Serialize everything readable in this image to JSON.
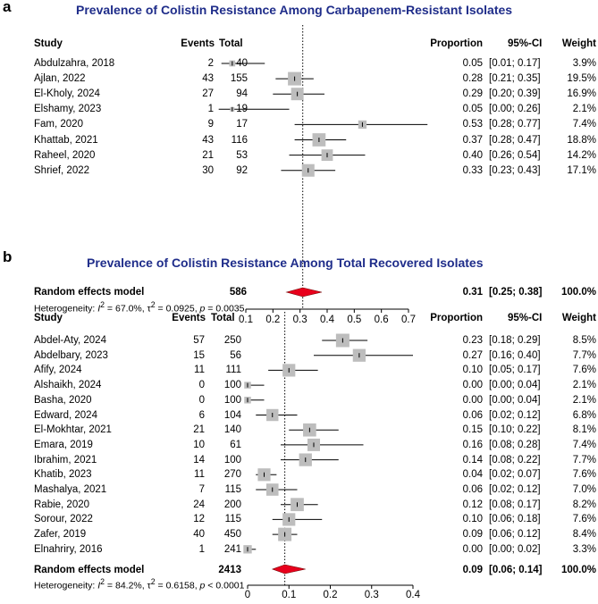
{
  "headers": {
    "study": "Study",
    "events": "Events",
    "total": "Total",
    "proportion": "Proportion",
    "ci": "95%-CI",
    "weight": "Weight"
  },
  "panels": [
    {
      "label": "a",
      "title": "Prevalence of Colistin Resistance Among Carbapenem-Resistant Isolates",
      "studies": [
        {
          "study": "Abdulzahra, 2018",
          "events": "2",
          "total": "40",
          "proportion": "0.05",
          "ci": "[0.01; 0.17]",
          "weight": "3.9%"
        },
        {
          "study": "Ajlan, 2022",
          "events": "43",
          "total": "155",
          "proportion": "0.28",
          "ci": "[0.21; 0.35]",
          "weight": "19.5%"
        },
        {
          "study": "El-Kholy, 2024",
          "events": "27",
          "total": "94",
          "proportion": "0.29",
          "ci": "[0.20; 0.39]",
          "weight": "16.9%"
        },
        {
          "study": "Elshamy, 2023",
          "events": "1",
          "total": "19",
          "proportion": "0.05",
          "ci": "[0.00; 0.26]",
          "weight": "2.1%"
        },
        {
          "study": "Fam, 2020",
          "events": "9",
          "total": "17",
          "proportion": "0.53",
          "ci": "[0.28; 0.77]",
          "weight": "7.4%"
        },
        {
          "study": "Khattab, 2021",
          "events": "43",
          "total": "116",
          "proportion": "0.37",
          "ci": "[0.28; 0.47]",
          "weight": "18.8%"
        },
        {
          "study": "Raheel, 2020",
          "events": "21",
          "total": "53",
          "proportion": "0.40",
          "ci": "[0.26; 0.54]",
          "weight": "14.2%"
        },
        {
          "study": "Shrief, 2022",
          "events": "30",
          "total": "92",
          "proportion": "0.33",
          "ci": "[0.23; 0.43]",
          "weight": "17.1%"
        }
      ],
      "summary": {
        "label": "Random effects model",
        "total": "586",
        "proportion": "0.31",
        "ci": "[0.25; 0.38]",
        "weight": "100.0%"
      },
      "heterogeneity": {
        "prefix": "Heterogeneity: ",
        "i2_value": " = 67.0%, ",
        "tau2_value": " = 0.0925, ",
        "p_value": " = 0.0035"
      }
    },
    {
      "label": "b",
      "title": "Prevalence of Colistin Resistance Among Total Recovered Isolates",
      "studies": [
        {
          "study": "Abdel-Aty, 2024",
          "events": "57",
          "total": "250",
          "proportion": "0.23",
          "ci": "[0.18; 0.29]",
          "weight": "8.5%"
        },
        {
          "study": "Abdelbary, 2023",
          "events": "15",
          "total": "56",
          "proportion": "0.27",
          "ci": "[0.16; 0.40]",
          "weight": "7.7%"
        },
        {
          "study": "Afify, 2024",
          "events": "11",
          "total": "111",
          "proportion": "0.10",
          "ci": "[0.05; 0.17]",
          "weight": "7.6%"
        },
        {
          "study": "Alshaikh, 2024",
          "events": "0",
          "total": "100",
          "proportion": "0.00",
          "ci": "[0.00; 0.04]",
          "weight": "2.1%"
        },
        {
          "study": "Basha, 2020",
          "events": "0",
          "total": "100",
          "proportion": "0.00",
          "ci": "[0.00; 0.04]",
          "weight": "2.1%"
        },
        {
          "study": "Edward, 2024",
          "events": "6",
          "total": "104",
          "proportion": "0.06",
          "ci": "[0.02; 0.12]",
          "weight": "6.8%"
        },
        {
          "study": "El-Mokhtar, 2021",
          "events": "21",
          "total": "140",
          "proportion": "0.15",
          "ci": "[0.10; 0.22]",
          "weight": "8.1%"
        },
        {
          "study": "Emara, 2019",
          "events": "10",
          "total": "61",
          "proportion": "0.16",
          "ci": "[0.08; 0.28]",
          "weight": "7.4%"
        },
        {
          "study": "Ibrahim, 2021",
          "events": "14",
          "total": "100",
          "proportion": "0.14",
          "ci": "[0.08; 0.22]",
          "weight": "7.7%"
        },
        {
          "study": "Khatib, 2023",
          "events": "11",
          "total": "270",
          "proportion": "0.04",
          "ci": "[0.02; 0.07]",
          "weight": "7.6%"
        },
        {
          "study": "Mashalya, 2021",
          "events": "7",
          "total": "115",
          "proportion": "0.06",
          "ci": "[0.02; 0.12]",
          "weight": "7.0%"
        },
        {
          "study": "Rabie, 2020",
          "events": "24",
          "total": "200",
          "proportion": "0.12",
          "ci": "[0.08; 0.17]",
          "weight": "8.2%"
        },
        {
          "study": "Sorour, 2022",
          "events": "12",
          "total": "115",
          "proportion": "0.10",
          "ci": "[0.06; 0.18]",
          "weight": "7.6%"
        },
        {
          "study": "Zafer, 2019",
          "events": "40",
          "total": "450",
          "proportion": "0.09",
          "ci": "[0.06; 0.12]",
          "weight": "8.4%"
        },
        {
          "study": "Elnahriry, 2016",
          "events": "1",
          "total": "241",
          "proportion": "0.00",
          "ci": "[0.00; 0.02]",
          "weight": "3.3%"
        }
      ],
      "summary": {
        "label": "Random effects model",
        "total": "2413",
        "proportion": "0.09",
        "ci": "[0.06; 0.14]",
        "weight": "100.0%"
      },
      "heterogeneity": {
        "prefix": "Heterogeneity: ",
        "i2_value": " = 84.2%, ",
        "tau2_value": " = 0.6158, ",
        "p_value": " < 0.0001"
      }
    }
  ],
  "chart_data": [
    {
      "type": "forest",
      "title": "Prevalence of Colistin Resistance Among Carbapenem-Resistant Isolates",
      "categories": [
        "Abdulzahra, 2018",
        "Ajlan, 2022",
        "El-Kholy, 2024",
        "Elshamy, 2023",
        "Fam, 2020",
        "Khattab, 2021",
        "Raheel, 2020",
        "Shrief, 2022"
      ],
      "estimates": [
        0.05,
        0.28,
        0.29,
        0.05,
        0.53,
        0.37,
        0.4,
        0.33
      ],
      "ci_low": [
        0.01,
        0.21,
        0.2,
        0.0,
        0.28,
        0.28,
        0.26,
        0.23
      ],
      "ci_high": [
        0.17,
        0.35,
        0.39,
        0.26,
        0.77,
        0.47,
        0.54,
        0.43
      ],
      "weights": [
        3.9,
        19.5,
        16.9,
        2.1,
        7.4,
        18.8,
        14.2,
        17.1
      ],
      "pooled": {
        "estimate": 0.31,
        "ci_low": 0.25,
        "ci_high": 0.38
      },
      "xlim": [
        0.1,
        0.7
      ],
      "ticks": [
        "0.1",
        "0.2",
        "0.3",
        "0.4",
        "0.5",
        "0.6",
        "0.7"
      ]
    },
    {
      "type": "forest",
      "title": "Prevalence of Colistin Resistance Among Total Recovered Isolates",
      "categories": [
        "Abdel-Aty, 2024",
        "Abdelbary, 2023",
        "Afify, 2024",
        "Alshaikh, 2024",
        "Basha, 2020",
        "Edward, 2024",
        "El-Mokhtar, 2021",
        "Emara, 2019",
        "Ibrahim, 2021",
        "Khatib, 2023",
        "Mashalya, 2021",
        "Rabie, 2020",
        "Sorour, 2022",
        "Zafer, 2019",
        "Elnahriry, 2016"
      ],
      "estimates": [
        0.23,
        0.27,
        0.1,
        0.0,
        0.0,
        0.06,
        0.15,
        0.16,
        0.14,
        0.04,
        0.06,
        0.12,
        0.1,
        0.09,
        0.0
      ],
      "ci_low": [
        0.18,
        0.16,
        0.05,
        0.0,
        0.0,
        0.02,
        0.1,
        0.08,
        0.08,
        0.02,
        0.02,
        0.08,
        0.06,
        0.06,
        0.0
      ],
      "ci_high": [
        0.29,
        0.4,
        0.17,
        0.04,
        0.04,
        0.12,
        0.22,
        0.28,
        0.22,
        0.07,
        0.12,
        0.17,
        0.18,
        0.12,
        0.02
      ],
      "weights": [
        8.5,
        7.7,
        7.6,
        2.1,
        2.1,
        6.8,
        8.1,
        7.4,
        7.7,
        7.6,
        7.0,
        8.2,
        7.6,
        8.4,
        3.3
      ],
      "pooled": {
        "estimate": 0.09,
        "ci_low": 0.06,
        "ci_high": 0.14
      },
      "xlim": [
        0,
        0.4
      ],
      "ticks": [
        "0",
        "0.1",
        "0.2",
        "0.3",
        "0.4"
      ]
    }
  ]
}
